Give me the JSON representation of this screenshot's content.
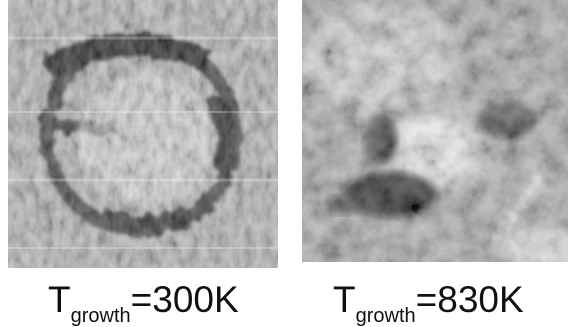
{
  "panels": [
    {
      "caption": {
        "main": "T",
        "subscript": "growth",
        "rest": "=300K"
      }
    },
    {
      "caption": {
        "main": "T",
        "subscript": "growth",
        "rest": "=830K"
      }
    }
  ],
  "colors": {
    "background": "#ffffff",
    "text": "#111111"
  }
}
